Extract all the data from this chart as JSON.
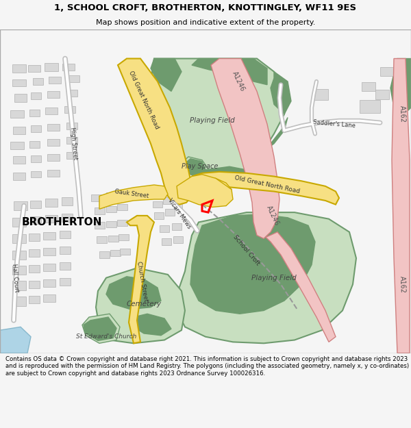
{
  "title": "1, SCHOOL CROFT, BROTHERTON, KNOTTINGLEY, WF11 9ES",
  "subtitle": "Map shows position and indicative extent of the property.",
  "footer": "Contains OS data © Crown copyright and database right 2021. This information is subject to Crown copyright and database rights 2023 and is reproduced with the permission of HM Land Registry. The polygons (including the associated geometry, namely x, y co-ordinates) are subject to Crown copyright and database rights 2023 Ordnance Survey 100026316.",
  "bg_color": "#f5f5f5",
  "map_bg": "#ffffff",
  "road_yellow": "#f7e083",
  "road_yellow_border": "#c8a800",
  "road_pink": "#f2c4c4",
  "road_pink_border": "#d08080",
  "green_dark": "#6e9b6e",
  "green_light": "#c8dfc0",
  "building_color": "#d8d8d8",
  "building_border": "#b0b0b0",
  "plot_color": "#ff0000",
  "water_color": "#aed4e6"
}
